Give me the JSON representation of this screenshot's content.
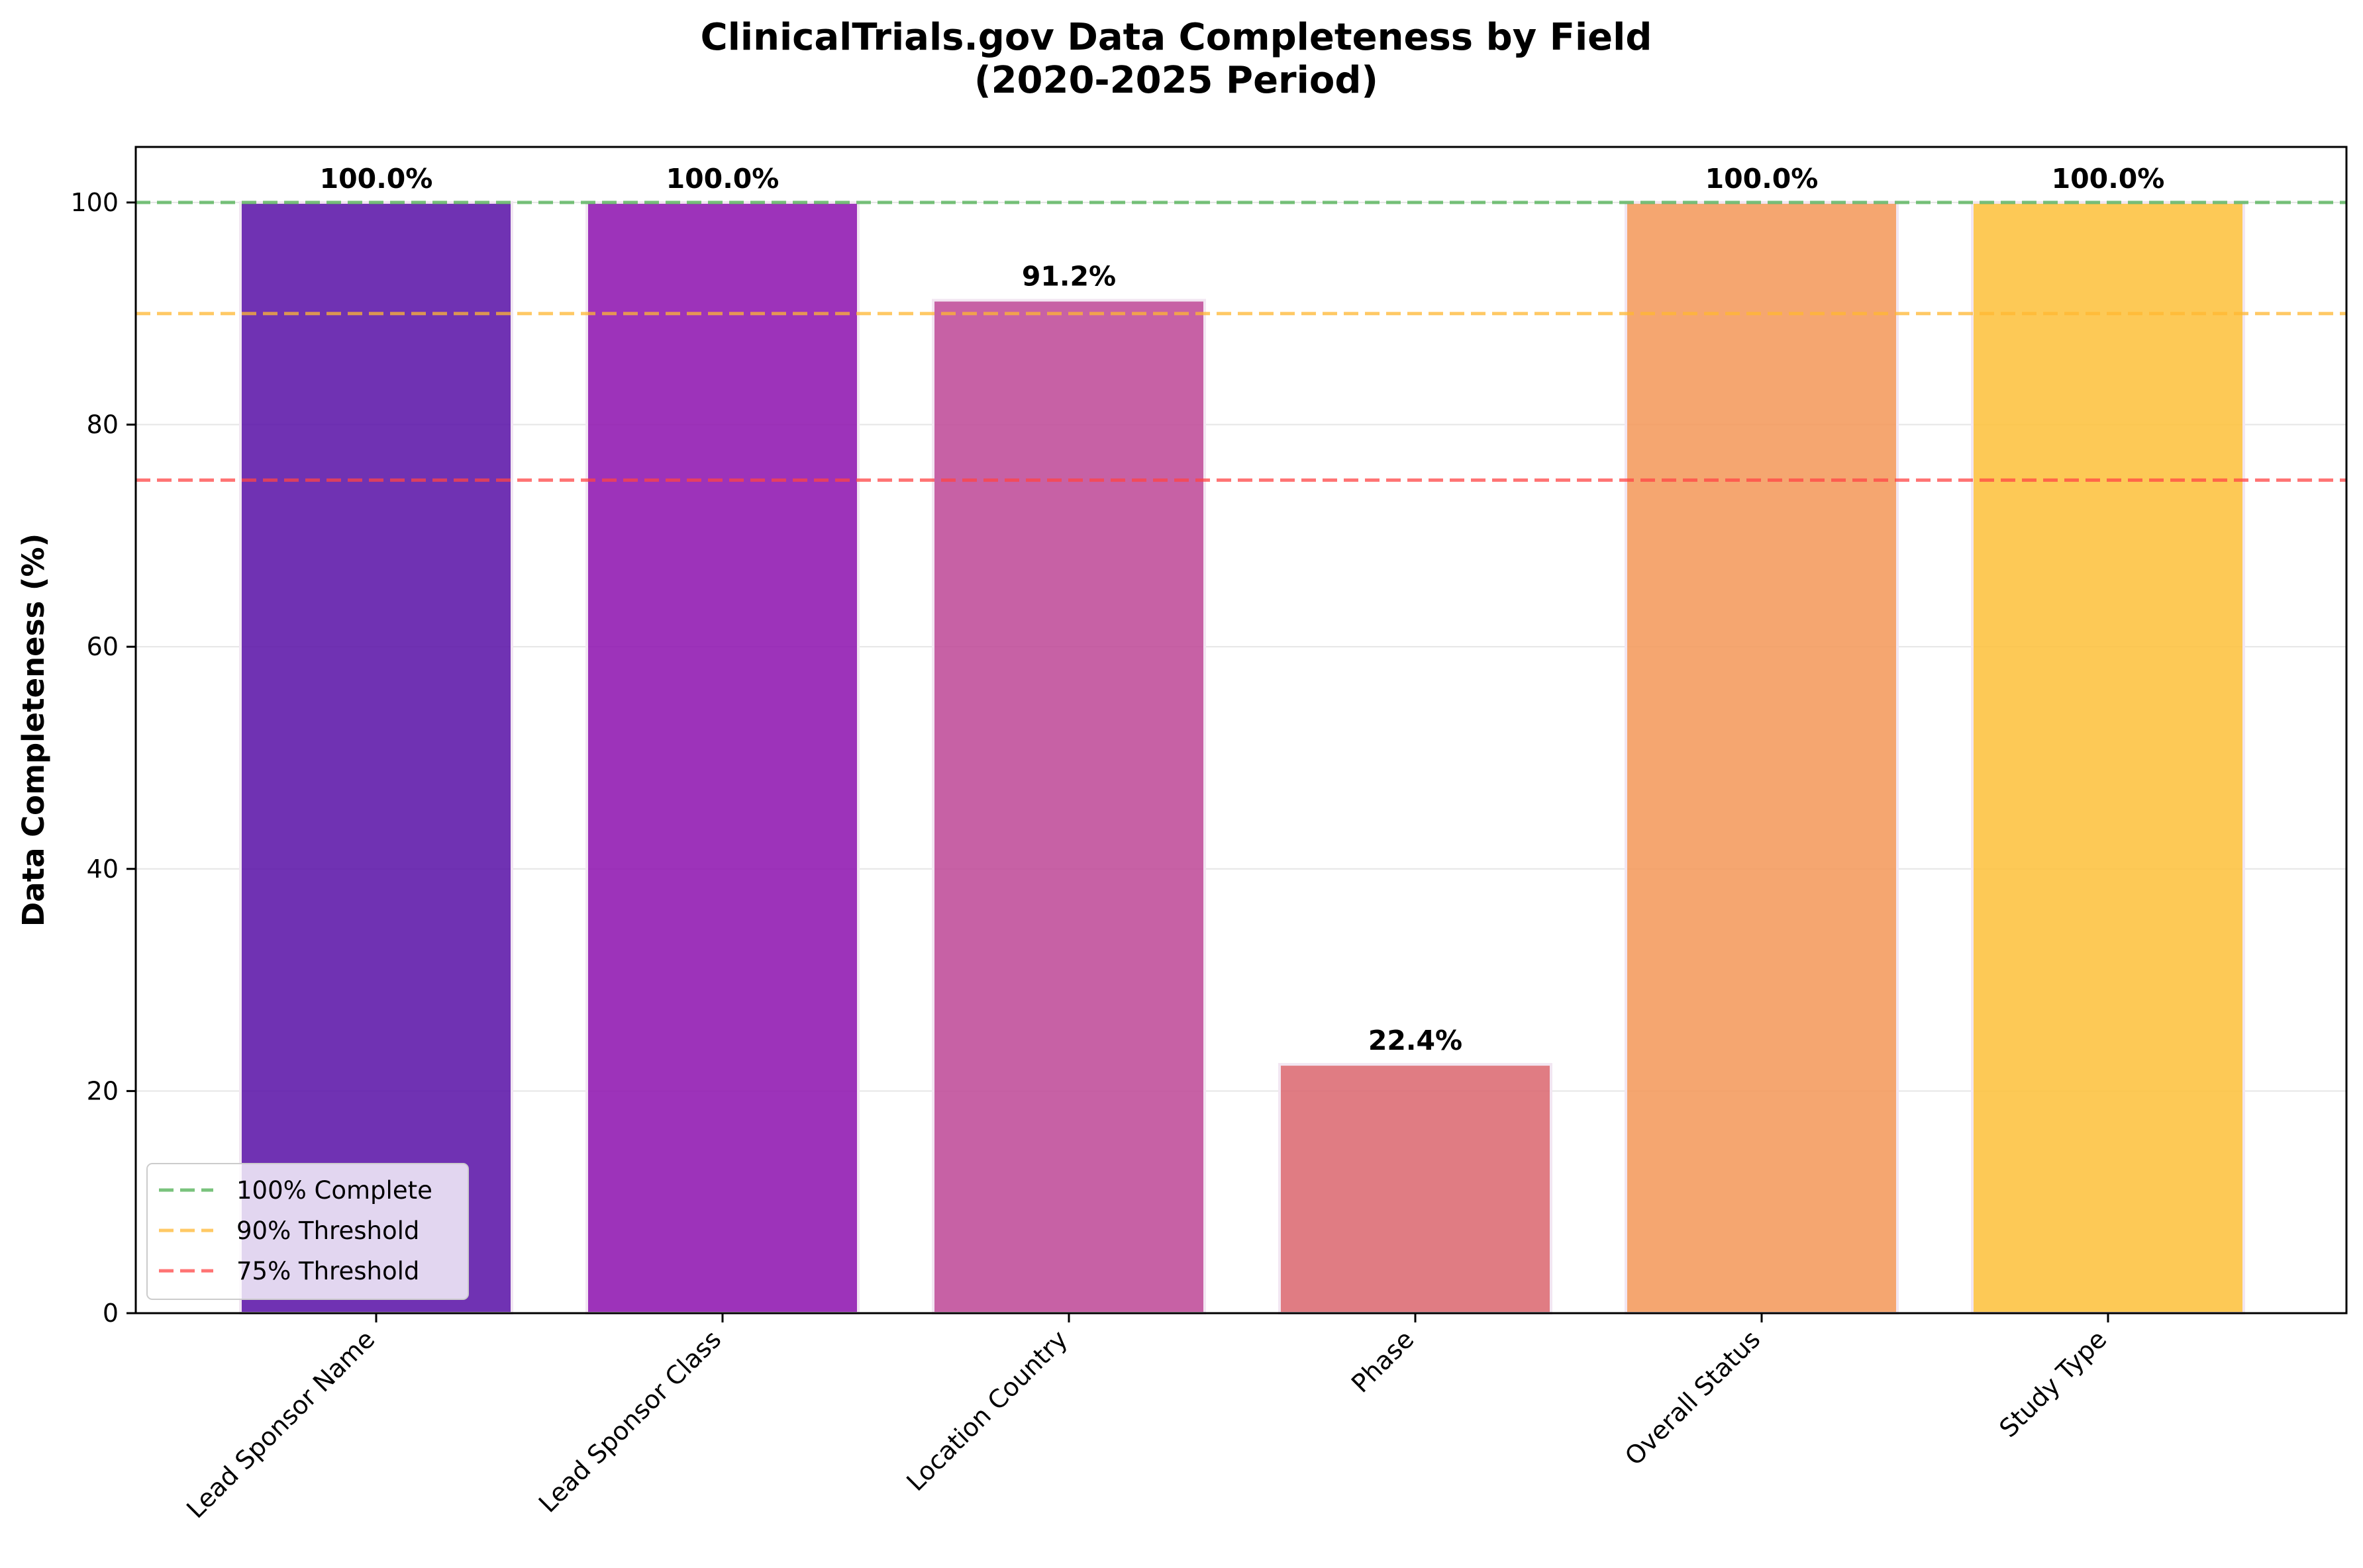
{
  "chart_data": {
    "type": "bar",
    "title_line1": "ClinicalTrials.gov Data Completeness by Field",
    "title_line2": "(2020-2025 Period)",
    "xlabel": "",
    "ylabel": "Data Completeness (%)",
    "ylim": [
      0,
      105
    ],
    "yticks": [
      0,
      20,
      40,
      60,
      80,
      100
    ],
    "categories": [
      "Lead Sponsor Name",
      "Lead Sponsor Class",
      "Location Country",
      "Phase",
      "Overall Status",
      "Study Type"
    ],
    "values": [
      100.0,
      100.0,
      91.2,
      22.4,
      100.0,
      100.0
    ],
    "value_labels": [
      "100.0%",
      "100.0%",
      "91.2%",
      "22.4%",
      "100.0%",
      "100.0%"
    ],
    "bar_colors": [
      "#5c16a8",
      "#9017b0",
      "#bf4b99",
      "#dc6a72",
      "#f49a5c",
      "#fdc23f"
    ],
    "grid": true,
    "reference_lines": [
      {
        "name": "100% Complete",
        "value": 100,
        "color": "#4caf50"
      },
      {
        "name": "90% Threshold",
        "value": 90,
        "color": "#ffb732"
      },
      {
        "name": "75% Threshold",
        "value": 75,
        "color": "#ff4444"
      }
    ],
    "legend_placement": "lower-left"
  }
}
